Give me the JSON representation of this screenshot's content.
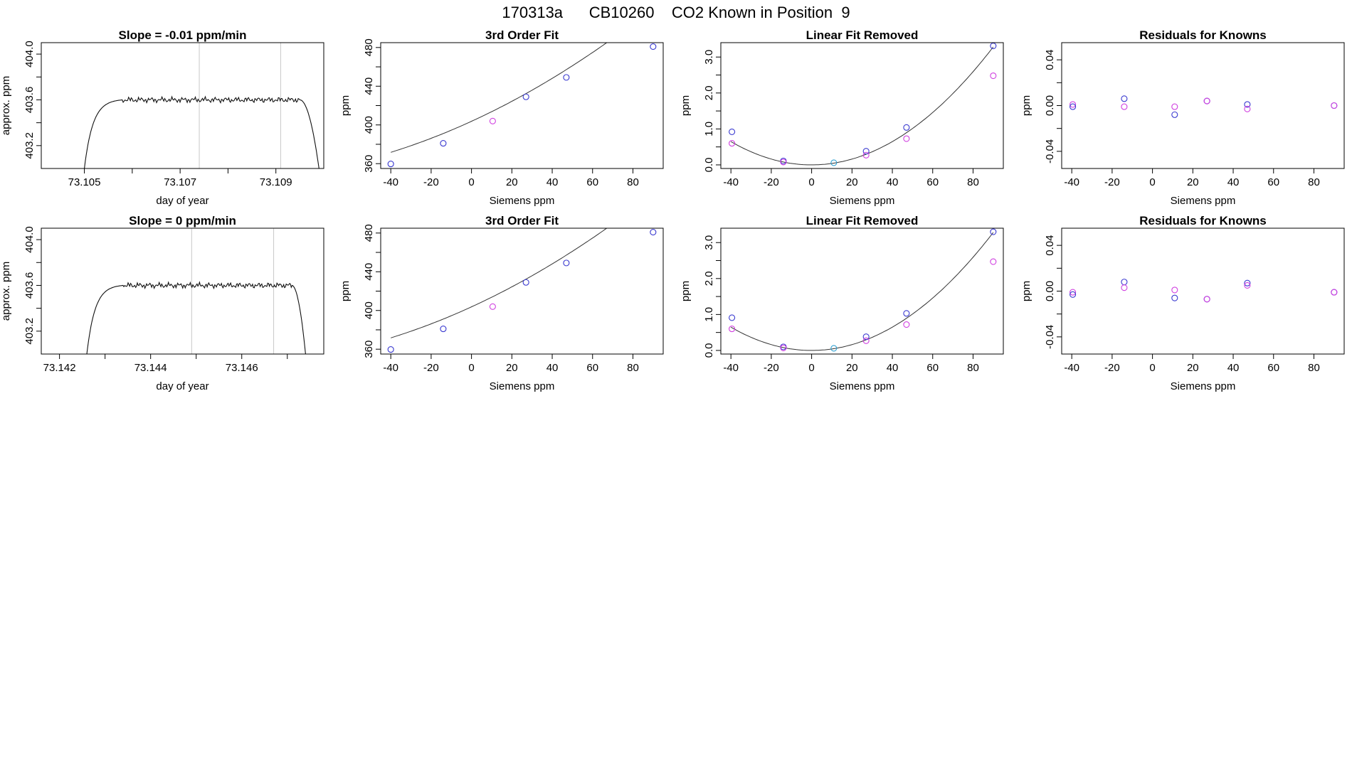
{
  "figure": {
    "title": "170313a      CB10260    CO2 Known in Position  9"
  },
  "colors": {
    "axes": "#000000",
    "trace": "#111111",
    "fit_line": "#333333",
    "vline": "#c8c8c8",
    "known_blue": "#3a3ad0",
    "known_magenta": "#d040e0",
    "known_cyan": "#30a0d0"
  },
  "chart_data": [
    {
      "type": "line",
      "title": "Slope =  -0.01  ppm/min",
      "xlabel": "day of year",
      "ylabel": "approx. ppm",
      "xlim": [
        73.1041,
        73.11
      ],
      "ylim": [
        403.0,
        404.1
      ],
      "xticks": [
        73.105,
        73.106,
        73.107,
        73.108,
        73.109
      ],
      "xticklabels": [
        "73.105",
        "",
        "73.107",
        "",
        "73.109"
      ],
      "yticks": [
        403.2,
        403.4,
        403.6,
        403.8,
        404.0
      ],
      "yticklabels": [
        "403.2",
        "",
        "403.6",
        "",
        "404.0"
      ],
      "vlines": [
        73.1074,
        73.1091
      ],
      "trace": {
        "start": 73.105,
        "rise_end": 73.1058,
        "end": 73.1095,
        "drop_end": 73.1099,
        "plateau": 403.6,
        "low": 403.0
      }
    },
    {
      "type": "scatter",
      "title": "3rd Order Fit",
      "xlabel": "Siemens ppm",
      "ylabel": "ppm",
      "xlim": [
        -45,
        95
      ],
      "ylim": [
        355,
        485
      ],
      "xticks": [
        -40,
        -20,
        0,
        20,
        40,
        60,
        80
      ],
      "xticklabels": [
        "-40",
        "-20",
        "0",
        "20",
        "40",
        "60",
        "80"
      ],
      "yticks": [
        360,
        380,
        400,
        420,
        440,
        460,
        480
      ],
      "yticklabels": [
        "360",
        "",
        "400",
        "",
        "440",
        "",
        "480"
      ],
      "fit": {
        "kind": "poly",
        "coef": [
          403.75,
          0.956,
          0.00385,
          -5e-07
        ]
      },
      "points": [
        {
          "x": -40,
          "y": 359.7,
          "series": "blue"
        },
        {
          "x": -14,
          "y": 381.0,
          "series": "blue"
        },
        {
          "x": 10.5,
          "y": 404.0,
          "series": "magenta"
        },
        {
          "x": 27,
          "y": 429.0,
          "series": "blue"
        },
        {
          "x": 47,
          "y": 449.1,
          "series": "blue"
        },
        {
          "x": 90,
          "y": 480.9,
          "series": "blue"
        }
      ]
    },
    {
      "type": "scatter",
      "title": "Linear Fit Removed",
      "xlabel": "Siemens ppm",
      "ylabel": "ppm",
      "xlim": [
        -45,
        95
      ],
      "ylim": [
        -0.1,
        3.4
      ],
      "xticks": [
        -40,
        -20,
        0,
        20,
        40,
        60,
        80
      ],
      "xticklabels": [
        "-40",
        "-20",
        "0",
        "20",
        "40",
        "60",
        "80"
      ],
      "yticks": [
        0.0,
        0.5,
        1.0,
        1.5,
        2.0,
        2.5,
        3.0
      ],
      "yticklabels": [
        "0.0",
        "",
        "1.0",
        "",
        "2.0",
        "",
        "3.0"
      ],
      "fit": {
        "kind": "poly",
        "coef": [
          0.0,
          0.0,
          0.000405,
          0.0
        ]
      },
      "points": [
        {
          "x": -39.5,
          "y": 0.92,
          "series": "blue"
        },
        {
          "x": -39.5,
          "y": 0.6,
          "series": "magenta"
        },
        {
          "x": -14,
          "y": 0.11,
          "series": "blue"
        },
        {
          "x": -14,
          "y": 0.08,
          "series": "magenta"
        },
        {
          "x": 11,
          "y": 0.06,
          "series": "cyan"
        },
        {
          "x": 27,
          "y": 0.38,
          "series": "blue"
        },
        {
          "x": 27,
          "y": 0.27,
          "series": "magenta"
        },
        {
          "x": 47,
          "y": 1.04,
          "series": "blue"
        },
        {
          "x": 47,
          "y": 0.73,
          "series": "magenta"
        },
        {
          "x": 90,
          "y": 3.31,
          "series": "blue"
        },
        {
          "x": 90,
          "y": 2.48,
          "series": "magenta"
        }
      ]
    },
    {
      "type": "scatter",
      "title": "Residuals for Knowns",
      "xlabel": "Siemens ppm",
      "ylabel": "ppm",
      "xlim": [
        -45,
        95
      ],
      "ylim": [
        -0.055,
        0.055
      ],
      "xticks": [
        -40,
        -20,
        0,
        20,
        40,
        60,
        80
      ],
      "xticklabels": [
        "-40",
        "-20",
        "0",
        "20",
        "40",
        "60",
        "80"
      ],
      "yticks": [
        -0.04,
        -0.02,
        0.0,
        0.02,
        0.04
      ],
      "yticklabels": [
        "-0.04",
        "",
        "0.00",
        "",
        "0.04"
      ],
      "points": [
        {
          "x": -39.5,
          "y": 0.001,
          "series": "magenta"
        },
        {
          "x": -39.5,
          "y": -0.001,
          "series": "blue"
        },
        {
          "x": -14,
          "y": 0.006,
          "series": "blue"
        },
        {
          "x": -14,
          "y": -0.001,
          "series": "magenta"
        },
        {
          "x": 11,
          "y": -0.001,
          "series": "magenta"
        },
        {
          "x": 11,
          "y": -0.008,
          "series": "blue"
        },
        {
          "x": 27,
          "y": 0.004,
          "series": "blue"
        },
        {
          "x": 27,
          "y": 0.004,
          "series": "magenta"
        },
        {
          "x": 47,
          "y": 0.001,
          "series": "blue"
        },
        {
          "x": 47,
          "y": -0.003,
          "series": "magenta"
        },
        {
          "x": 90,
          "y": 0.0,
          "series": "blue"
        },
        {
          "x": 90,
          "y": 0.0,
          "series": "magenta"
        }
      ]
    },
    {
      "type": "line",
      "title": "Slope =  0  ppm/min",
      "xlabel": "day of year",
      "ylabel": "approx. ppm",
      "xlim": [
        73.1416,
        73.1478
      ],
      "ylim": [
        403.0,
        404.1
      ],
      "xticks": [
        73.142,
        73.143,
        73.144,
        73.145,
        73.146,
        73.147
      ],
      "xticklabels": [
        "73.142",
        "",
        "73.144",
        "",
        "73.146",
        ""
      ],
      "yticks": [
        403.2,
        403.4,
        403.6,
        403.8,
        404.0
      ],
      "yticklabels": [
        "403.2",
        "",
        "403.6",
        "",
        "404.0"
      ],
      "vlines": [
        73.1449,
        73.1467
      ],
      "trace": {
        "start": 73.1426,
        "rise_end": 73.1434,
        "end": 73.1471,
        "drop_end": 73.1474,
        "plateau": 403.6,
        "low": 403.0
      }
    },
    {
      "type": "scatter",
      "title": "3rd Order Fit",
      "xlabel": "Siemens ppm",
      "ylabel": "ppm",
      "xlim": [
        -45,
        95
      ],
      "ylim": [
        355,
        485
      ],
      "xticks": [
        -40,
        -20,
        0,
        20,
        40,
        60,
        80
      ],
      "xticklabels": [
        "-40",
        "-20",
        "0",
        "20",
        "40",
        "60",
        "80"
      ],
      "yticks": [
        360,
        380,
        400,
        420,
        440,
        460,
        480
      ],
      "yticklabels": [
        "360",
        "",
        "400",
        "",
        "440",
        "",
        "480"
      ],
      "fit": {
        "kind": "poly",
        "coef": [
          403.75,
          0.956,
          0.00385,
          -5e-07
        ]
      },
      "points": [
        {
          "x": -40,
          "y": 359.7,
          "series": "blue"
        },
        {
          "x": -14,
          "y": 381.0,
          "series": "blue"
        },
        {
          "x": 10.5,
          "y": 404.0,
          "series": "magenta"
        },
        {
          "x": 27,
          "y": 429.0,
          "series": "blue"
        },
        {
          "x": 47,
          "y": 449.1,
          "series": "blue"
        },
        {
          "x": 90,
          "y": 480.9,
          "series": "blue"
        }
      ]
    },
    {
      "type": "scatter",
      "title": "Linear Fit Removed",
      "xlabel": "Siemens ppm",
      "ylabel": "ppm",
      "xlim": [
        -45,
        95
      ],
      "ylim": [
        -0.1,
        3.4
      ],
      "xticks": [
        -40,
        -20,
        0,
        20,
        40,
        60,
        80
      ],
      "xticklabels": [
        "-40",
        "-20",
        "0",
        "20",
        "40",
        "60",
        "80"
      ],
      "yticks": [
        0.0,
        0.5,
        1.0,
        1.5,
        2.0,
        2.5,
        3.0
      ],
      "yticklabels": [
        "0.0",
        "",
        "1.0",
        "",
        "2.0",
        "",
        "3.0"
      ],
      "fit": {
        "kind": "poly",
        "coef": [
          0.0,
          0.0,
          0.000405,
          0.0
        ]
      },
      "points": [
        {
          "x": -39.5,
          "y": 0.91,
          "series": "blue"
        },
        {
          "x": -39.5,
          "y": 0.6,
          "series": "magenta"
        },
        {
          "x": -14,
          "y": 0.1,
          "series": "blue"
        },
        {
          "x": -14,
          "y": 0.07,
          "series": "magenta"
        },
        {
          "x": 11,
          "y": 0.06,
          "series": "cyan"
        },
        {
          "x": 27,
          "y": 0.38,
          "series": "blue"
        },
        {
          "x": 27,
          "y": 0.27,
          "series": "magenta"
        },
        {
          "x": 47,
          "y": 1.03,
          "series": "blue"
        },
        {
          "x": 47,
          "y": 0.72,
          "series": "magenta"
        },
        {
          "x": 90,
          "y": 3.3,
          "series": "blue"
        },
        {
          "x": 90,
          "y": 2.47,
          "series": "magenta"
        }
      ]
    },
    {
      "type": "scatter",
      "title": "Residuals for Knowns",
      "xlabel": "Siemens ppm",
      "ylabel": "ppm",
      "xlim": [
        -45,
        95
      ],
      "ylim": [
        -0.055,
        0.055
      ],
      "xticks": [
        -40,
        -20,
        0,
        20,
        40,
        60,
        80
      ],
      "xticklabels": [
        "-40",
        "-20",
        "0",
        "20",
        "40",
        "60",
        "80"
      ],
      "yticks": [
        -0.04,
        -0.02,
        0.0,
        0.02,
        0.04
      ],
      "yticklabels": [
        "-0.04",
        "",
        "0.00",
        "",
        "0.04"
      ],
      "points": [
        {
          "x": -39.5,
          "y": -0.001,
          "series": "magenta"
        },
        {
          "x": -39.5,
          "y": -0.003,
          "series": "blue"
        },
        {
          "x": -14,
          "y": 0.008,
          "series": "blue"
        },
        {
          "x": -14,
          "y": 0.003,
          "series": "magenta"
        },
        {
          "x": 11,
          "y": 0.001,
          "series": "magenta"
        },
        {
          "x": 11,
          "y": -0.006,
          "series": "blue"
        },
        {
          "x": 27,
          "y": -0.007,
          "series": "blue"
        },
        {
          "x": 27,
          "y": -0.007,
          "series": "magenta"
        },
        {
          "x": 47,
          "y": 0.007,
          "series": "blue"
        },
        {
          "x": 47,
          "y": 0.005,
          "series": "magenta"
        },
        {
          "x": 90,
          "y": -0.001,
          "series": "blue"
        },
        {
          "x": 90,
          "y": -0.001,
          "series": "magenta"
        }
      ]
    }
  ]
}
